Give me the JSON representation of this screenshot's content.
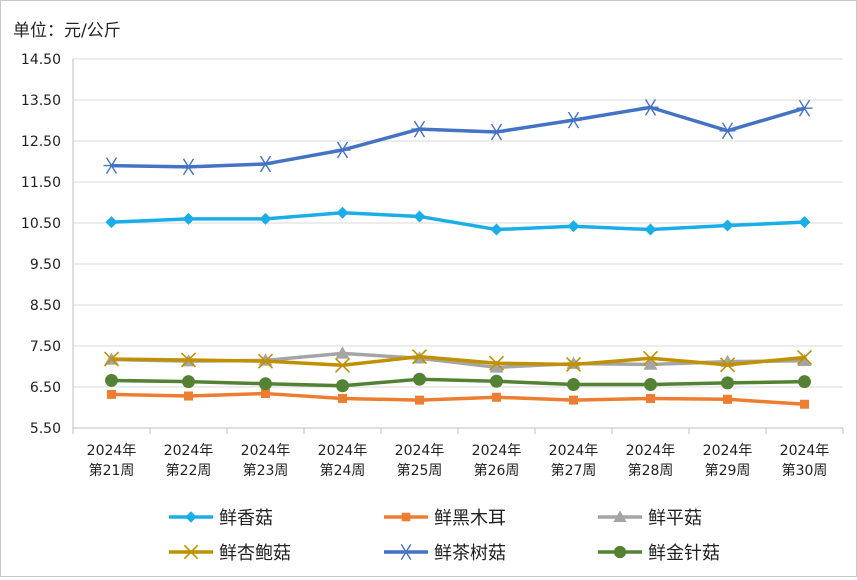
{
  "chart_data": {
    "type": "line",
    "unit_label": "单位：元/公斤",
    "categories": [
      [
        "2024年",
        "第21周"
      ],
      [
        "2024年",
        "第22周"
      ],
      [
        "2024年",
        "第23周"
      ],
      [
        "2024年",
        "第24周"
      ],
      [
        "2024年",
        "第25周"
      ],
      [
        "2024年",
        "第26周"
      ],
      [
        "2024年",
        "第27周"
      ],
      [
        "2024年",
        "第28周"
      ],
      [
        "2024年",
        "第29周"
      ],
      [
        "2024年",
        "第30周"
      ]
    ],
    "ylim": [
      5.5,
      14.5
    ],
    "yticks": [
      "14.50",
      "13.50",
      "12.50",
      "11.50",
      "10.50",
      "9.50",
      "8.50",
      "7.50",
      "6.50",
      "5.50"
    ],
    "grid": "horizontal",
    "legend_position": "bottom",
    "series": [
      {
        "name": "鲜香菇",
        "color": "#1aaee8",
        "marker": "diamond",
        "values": [
          10.52,
          10.6,
          10.6,
          10.75,
          10.66,
          10.34,
          10.42,
          10.34,
          10.44,
          10.52
        ]
      },
      {
        "name": "鲜黑木耳",
        "color": "#ed7d31",
        "marker": "square",
        "values": [
          6.32,
          6.28,
          6.34,
          6.22,
          6.18,
          6.25,
          6.18,
          6.22,
          6.2,
          6.08
        ]
      },
      {
        "name": "鲜平菇",
        "color": "#a5a5a5",
        "marker": "triangle",
        "values": [
          7.17,
          7.13,
          7.15,
          7.32,
          7.2,
          6.98,
          7.07,
          7.05,
          7.12,
          7.14
        ]
      },
      {
        "name": "鲜杏鲍菇",
        "color": "#bf9000",
        "marker": "x",
        "values": [
          7.18,
          7.16,
          7.13,
          7.03,
          7.24,
          7.08,
          7.05,
          7.2,
          7.04,
          7.22
        ]
      },
      {
        "name": "鲜茶树菇",
        "color": "#4472c4",
        "marker": "star",
        "values": [
          11.9,
          11.87,
          11.94,
          12.28,
          12.79,
          12.72,
          13.01,
          13.32,
          12.75,
          13.3
        ]
      },
      {
        "name": "鲜金针菇",
        "color": "#548235",
        "marker": "circle",
        "values": [
          6.66,
          6.63,
          6.58,
          6.53,
          6.69,
          6.64,
          6.56,
          6.56,
          6.6,
          6.63
        ]
      }
    ]
  }
}
